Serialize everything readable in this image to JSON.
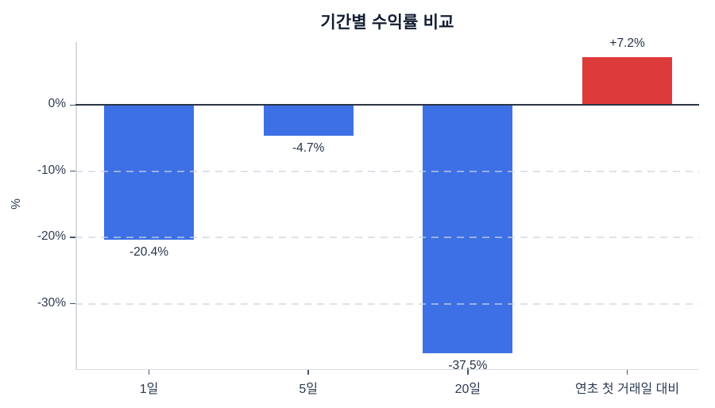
{
  "chart_data": {
    "type": "bar",
    "title": "기간별 수익률 비교",
    "ylabel": "%",
    "xlabel": "",
    "categories": [
      "1일",
      "5일",
      "20일",
      "연초 첫 거래일 대비"
    ],
    "values": [
      -20.4,
      -4.7,
      -37.5,
      7.2
    ],
    "value_labels": [
      "-20.4%",
      "-4.7%",
      "-37,5%",
      "+7.2%"
    ],
    "bar_colors": [
      "#3D70E5",
      "#3D70E5",
      "#3D70E5",
      "#DD3A3A"
    ],
    "yticks": [
      0,
      -10,
      -20,
      -30
    ],
    "ytick_labels": [
      "0%",
      "-10%",
      "-20%",
      "-30%"
    ],
    "ylim": [
      -40,
      9.5
    ],
    "grid": true,
    "legend": false,
    "colors": {
      "bar_negative": "#3D70E5",
      "bar_positive": "#DD3A3A",
      "title_text": "#141E33",
      "axis_text": "#2F3B52",
      "zero_line": "#2A3447",
      "spine": "#D9DDE3",
      "gridline": "#CBD3DF",
      "background": "#FFFFFF"
    }
  }
}
